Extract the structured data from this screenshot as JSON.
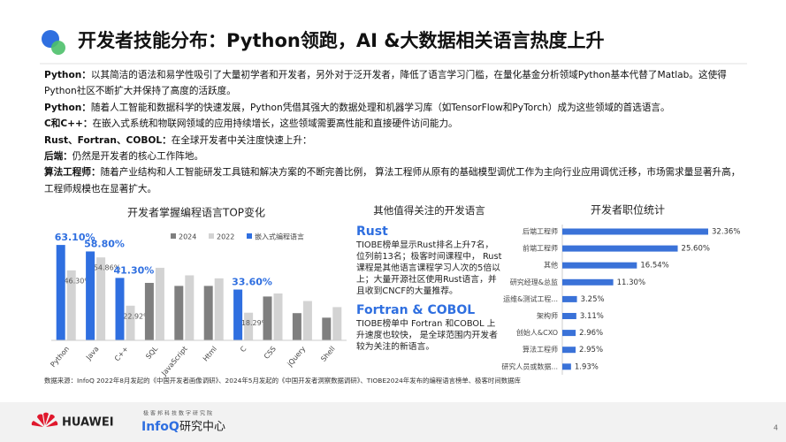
{
  "title": "开发者技能分布：Python领跑，AI &大数据相关语言热度上升",
  "paragraphs": [
    {
      "label": "Python：",
      "text": "以其简洁的语法和易学性吸引了大量初学者和开发者，另外对于泛开发者，降低了语言学习门槛，在量化基金分析领域Python基本代替了Matlab。这使得Python社区不断扩大并保持了高度的活跃度。"
    },
    {
      "label": "Python：",
      "text": "随着人工智能和数据科学的快速发展，Python凭借其强大的数据处理和机器学习库（如TensorFlow和PyTorch）成为这些领域的首选语言。"
    },
    {
      "label": "C和C++：",
      "text": "在嵌入式系统和物联网领域的应用持续增长，这些领域需要高性能和直接硬件访问能力。"
    },
    {
      "label": "Rust、Fortran、COBOL：",
      "text": "在全球开发者中关注度快速上升："
    },
    {
      "label": "后端：",
      "text": "仍然是开发者的核心工作阵地。"
    },
    {
      "label": "算法工程师：",
      "text": "随着产业结构和人工智能研发工具链和解决方案的不断完善比例， 算法工程师从原有的基础模型调优工作为主向行业应用调优迁移，市场需求量显著升高， 工程师规模也在显著扩大。"
    }
  ],
  "chart_data": [
    {
      "type": "bar",
      "title": "开发者掌握编程语言TOP变化",
      "categories": [
        "Python",
        "Java",
        "C++",
        "SQL",
        "JavaScript",
        "Html",
        "C",
        "CSS",
        "jQuery",
        "Shell"
      ],
      "series": [
        {
          "name": "2024",
          "color": "#7f7f7f",
          "values": [
            null,
            null,
            null,
            38,
            36,
            36,
            null,
            29,
            18,
            15
          ],
          "value_labels": [
            null,
            null,
            null,
            null,
            null,
            null,
            null,
            null,
            null,
            null
          ]
        },
        {
          "name": "2022",
          "color": "#d3d3d3",
          "values": [
            46.3,
            54.86,
            22.92,
            48,
            43,
            41,
            18.29,
            31,
            26,
            22
          ],
          "value_labels": [
            "46.30%",
            "54.86%",
            "22.92%",
            null,
            null,
            null,
            "18.29%",
            null,
            null,
            null
          ]
        },
        {
          "name": "嵌入式编程语言",
          "color": "#2f6fe0",
          "values": [
            63.1,
            58.8,
            41.3,
            null,
            null,
            null,
            33.6,
            null,
            null,
            null
          ],
          "value_labels": [
            "63.10%",
            "58.80%",
            "41.30%",
            null,
            null,
            null,
            "33.60%",
            null,
            null,
            null
          ]
        }
      ]
    },
    {
      "type": "hbar",
      "title": "开发者职位统计",
      "color": "#3a72d8",
      "categories": [
        "后端工程师",
        "前端工程师",
        "其他",
        "研究经理&总监",
        "运维&测试工程...",
        "架构师",
        "创始人&CXO",
        "算法工程师",
        "研究人员或数据..."
      ],
      "values": [
        32.36,
        25.6,
        16.54,
        11.3,
        3.25,
        3.11,
        2.96,
        2.95,
        1.93
      ],
      "value_labels": [
        "32.36%",
        "25.60%",
        "16.54%",
        "11.30%",
        "3.25%",
        "3.11%",
        "2.96%",
        "2.95%",
        "1.93%"
      ]
    }
  ],
  "middle": {
    "title": "其他值得关注的开发语言",
    "sections": [
      {
        "heading": "Rust",
        "text": "TIOBE榜单显示Rust排名上升7名，位列前13名；极客时间课程中， Rust课程是其他语言课程学习人次的5倍以上；大量开源社区使用Rust语言，并且收到CNCF的大量推荐。"
      },
      {
        "heading": "Fortran & COBOL",
        "text": "TIOBE榜单中 Fortran 和COBOL 上升速度也较快， 是全球范围内开发者较为关注的新语言。"
      }
    ]
  },
  "source": "数据来源：InfoQ 2022年8月发起的《中国开发者画像调研》、2024年5月发起的《中国开发者洞察数据调研》、TIOBE2024年发布的编程语言榜单、极客时间数据库",
  "footer": {
    "brand": "HUAWEI",
    "tagline": "极客邦科技数字研究院",
    "infoq": "InfoQ",
    "center": "研究中心"
  },
  "page_number": "4"
}
